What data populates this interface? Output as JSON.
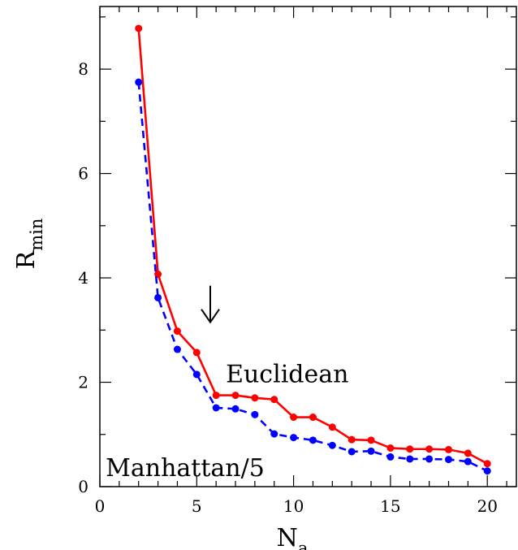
{
  "chart_data": {
    "type": "line",
    "xlabel": "N",
    "xlabel_sub": "a",
    "ylabel": "R",
    "ylabel_sub": "min",
    "xlim": [
      0,
      21.5
    ],
    "ylim": [
      0,
      9.2
    ],
    "x_ticks": [
      0,
      5,
      10,
      15,
      20
    ],
    "y_ticks": [
      0,
      2,
      4,
      6,
      8
    ],
    "x": [
      2,
      3,
      4,
      5,
      6,
      7,
      8,
      9,
      10,
      11,
      12,
      13,
      14,
      15,
      16,
      17,
      18,
      19,
      20
    ],
    "series": [
      {
        "name": "Euclidean",
        "color": "#ff0000",
        "style": "solid",
        "values": [
          8.78,
          4.07,
          2.98,
          2.57,
          1.75,
          1.75,
          1.7,
          1.67,
          1.33,
          1.33,
          1.14,
          0.9,
          0.89,
          0.74,
          0.72,
          0.72,
          0.71,
          0.64,
          0.44
        ]
      },
      {
        "name": "Manhattan/5",
        "color": "#0000ff",
        "style": "dashed",
        "values": [
          7.75,
          3.62,
          2.63,
          2.15,
          1.51,
          1.49,
          1.38,
          1.01,
          0.94,
          0.89,
          0.79,
          0.67,
          0.68,
          0.57,
          0.53,
          0.53,
          0.52,
          0.48,
          0.3
        ]
      }
    ],
    "annotations": [
      {
        "text": "Euclidean",
        "x": 6.5,
        "y": 2.0
      },
      {
        "text": "Manhattan/5",
        "x": 0.3,
        "y": 0.2
      }
    ],
    "arrow": {
      "x": 5.7,
      "y_top": 3.85,
      "y_bottom": 3.15
    }
  }
}
